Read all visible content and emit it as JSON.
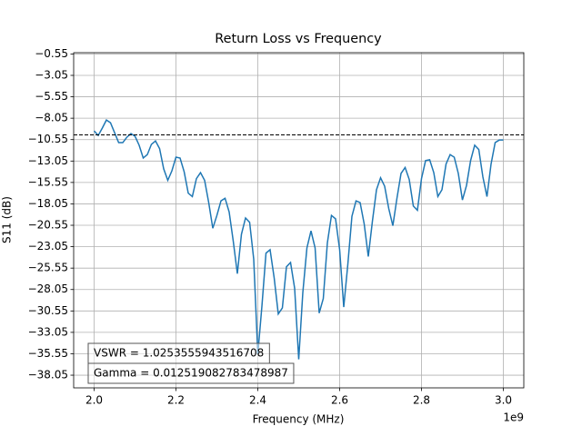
{
  "chart_data": {
    "type": "line",
    "title": "Return Loss vs Frequency",
    "xlabel": "Frequency (MHz)",
    "ylabel": "S11 (dB)",
    "x_offset_label": "1e9",
    "x": [
      2000000000,
      2010000000,
      2020000000,
      2030000000,
      2040000000,
      2050000000,
      2060000000,
      2070000000,
      2080000000,
      2090000000,
      2100000000,
      2110000000,
      2120000000,
      2130000000,
      2140000000,
      2150000000,
      2160000000,
      2170000000,
      2180000000,
      2190000000,
      2200000000,
      2210000000,
      2220000000,
      2230000000,
      2240000000,
      2250000000,
      2260000000,
      2270000000,
      2280000000,
      2290000000,
      2300000000,
      2310000000,
      2320000000,
      2330000000,
      2340000000,
      2350000000,
      2360000000,
      2370000000,
      2380000000,
      2390000000,
      2400000000,
      2410000000,
      2420000000,
      2430000000,
      2440000000,
      2450000000,
      2460000000,
      2470000000,
      2480000000,
      2490000000,
      2500000000,
      2510000000,
      2520000000,
      2530000000,
      2540000000,
      2550000000,
      2560000000,
      2570000000,
      2580000000,
      2590000000,
      2600000000,
      2610000000,
      2620000000,
      2630000000,
      2640000000,
      2650000000,
      2660000000,
      2670000000,
      2680000000,
      2690000000,
      2700000000,
      2710000000,
      2720000000,
      2730000000,
      2740000000,
      2750000000,
      2760000000,
      2770000000,
      2780000000,
      2790000000,
      2800000000,
      2810000000,
      2820000000,
      2830000000,
      2840000000,
      2850000000,
      2860000000,
      2870000000,
      2880000000,
      2890000000,
      2900000000,
      2910000000,
      2920000000,
      2930000000,
      2940000000,
      2950000000,
      2960000000,
      2970000000,
      2980000000,
      2990000000,
      3000000000
    ],
    "series": [
      {
        "color": "#1f77b4",
        "values": [
          -9.53,
          -10.06,
          -9.2,
          -8.26,
          -8.58,
          -9.74,
          -10.9,
          -10.9,
          -10.27,
          -9.84,
          -10.16,
          -11.2,
          -12.7,
          -12.3,
          -11.1,
          -10.7,
          -11.6,
          -13.96,
          -15.3,
          -14.2,
          -12.6,
          -12.7,
          -14.3,
          -16.8,
          -17.2,
          -15.1,
          -14.4,
          -15.3,
          -17.9,
          -20.9,
          -19.4,
          -17.7,
          -17.4,
          -19.0,
          -22.4,
          -26.2,
          -21.6,
          -19.7,
          -20.2,
          -24.5,
          -35.6,
          -30.0,
          -23.8,
          -23.4,
          -26.7,
          -30.9,
          -30.2,
          -25.4,
          -24.9,
          -27.9,
          -36.2,
          -28.4,
          -23.2,
          -21.2,
          -23.2,
          -30.8,
          -29.1,
          -22.6,
          -19.4,
          -19.8,
          -23.4,
          -30.1,
          -25.1,
          -19.5,
          -17.7,
          -17.9,
          -20.4,
          -24.2,
          -20.1,
          -16.4,
          -15.0,
          -16.0,
          -18.6,
          -20.6,
          -17.4,
          -14.5,
          -13.8,
          -15.2,
          -18.3,
          -18.8,
          -15.1,
          -13.0,
          -12.9,
          -14.4,
          -17.2,
          -16.4,
          -13.4,
          -12.3,
          -12.6,
          -14.5,
          -17.6,
          -15.9,
          -13.0,
          -11.2,
          -11.7,
          -14.9,
          -17.2,
          -13.4,
          -10.9,
          -10.6,
          -10.6
        ]
      }
    ],
    "reference_line": -10,
    "annotations": [
      "VSWR = 1.0253555943516708",
      "Gamma = 0.012519082783478987"
    ],
    "xlim": [
      1950000000,
      3050000000
    ],
    "xticks": [
      {
        "value": 2000000000,
        "label": "2.0"
      },
      {
        "value": 2200000000,
        "label": "2.2"
      },
      {
        "value": 2400000000,
        "label": "2.4"
      },
      {
        "value": 2600000000,
        "label": "2.6"
      },
      {
        "value": 2800000000,
        "label": "2.8"
      },
      {
        "value": 3000000000,
        "label": "3.0"
      }
    ],
    "ylim": [
      -39.53,
      -0.4
    ],
    "yticks": [
      {
        "value": -0.55,
        "label": "−0.55"
      },
      {
        "value": -3.05,
        "label": "−3.05"
      },
      {
        "value": -5.55,
        "label": "−5.55"
      },
      {
        "value": -8.05,
        "label": "−8.05"
      },
      {
        "value": -10.55,
        "label": "−10.55"
      },
      {
        "value": -13.05,
        "label": "−13.05"
      },
      {
        "value": -15.55,
        "label": "−15.55"
      },
      {
        "value": -18.05,
        "label": "−18.05"
      },
      {
        "value": -20.55,
        "label": "−20.55"
      },
      {
        "value": -23.05,
        "label": "−23.05"
      },
      {
        "value": -25.55,
        "label": "−25.55"
      },
      {
        "value": -28.05,
        "label": "−28.05"
      },
      {
        "value": -30.55,
        "label": "−30.55"
      },
      {
        "value": -33.05,
        "label": "−33.05"
      },
      {
        "value": -35.55,
        "label": "−35.55"
      },
      {
        "value": -38.05,
        "label": "−38.05"
      }
    ],
    "grid": true
  }
}
